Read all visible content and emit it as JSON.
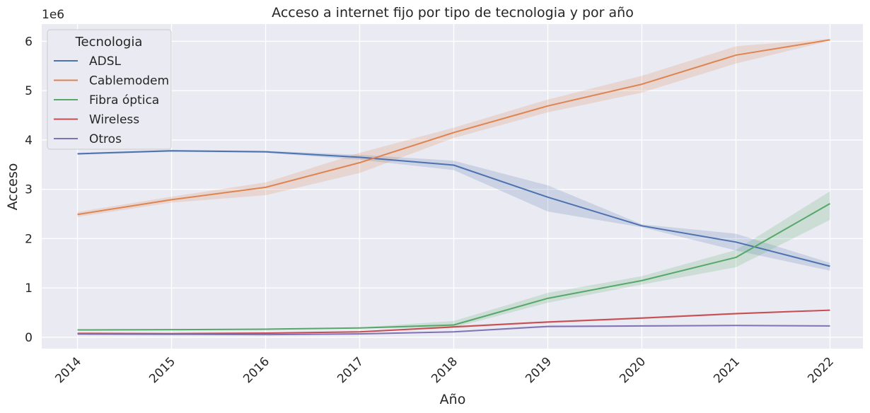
{
  "chart_data": {
    "type": "line",
    "title": "Acceso a internet fijo por tipo de tecnologia y por año",
    "xlabel": "Año",
    "ylabel": "Acceso",
    "y_offset_label": "1e6",
    "x": [
      2014,
      2015,
      2016,
      2017,
      2018,
      2019,
      2020,
      2021,
      2022
    ],
    "x_tick_labels": [
      "2014",
      "2015",
      "2016",
      "2017",
      "2018",
      "2019",
      "2020",
      "2021",
      "2022"
    ],
    "xlim": [
      2013.62,
      2022.35
    ],
    "y_ticks": [
      0,
      1,
      2,
      3,
      4,
      5,
      6
    ],
    "y_tick_labels": [
      "0",
      "1",
      "2",
      "3",
      "4",
      "5",
      "6"
    ],
    "ylim": [
      -0.23,
      6.35
    ],
    "y_scale_note": "values in millions (1e6)",
    "grid": true,
    "legend": {
      "title": "Tecnologia",
      "placement": "top-left"
    },
    "series": [
      {
        "name": "ADSL",
        "color": "#4c72b0",
        "values": [
          3.72,
          3.78,
          3.76,
          3.65,
          3.49,
          2.84,
          2.26,
          1.93,
          1.44
        ],
        "lower": [
          3.7,
          3.76,
          3.74,
          3.6,
          3.39,
          2.55,
          2.23,
          1.76,
          1.35
        ],
        "upper": [
          3.74,
          3.8,
          3.78,
          3.7,
          3.58,
          3.08,
          2.29,
          2.1,
          1.51
        ]
      },
      {
        "name": "Cablemodem",
        "color": "#dd8452",
        "values": [
          2.49,
          2.79,
          3.04,
          3.54,
          4.15,
          4.69,
          5.13,
          5.72,
          6.03
        ],
        "lower": [
          2.44,
          2.73,
          2.88,
          3.33,
          4.04,
          4.56,
          4.96,
          5.55,
          6.01
        ],
        "upper": [
          2.54,
          2.85,
          3.14,
          3.74,
          4.25,
          4.82,
          5.3,
          5.9,
          6.05
        ]
      },
      {
        "name": "Fibra óptica",
        "color": "#55a868",
        "values": [
          0.15,
          0.155,
          0.165,
          0.19,
          0.25,
          0.79,
          1.15,
          1.62,
          2.71
        ],
        "lower": [
          0.14,
          0.145,
          0.155,
          0.18,
          0.2,
          0.7,
          1.07,
          1.42,
          2.38
        ],
        "upper": [
          0.16,
          0.165,
          0.175,
          0.2,
          0.33,
          0.9,
          1.24,
          1.77,
          2.96
        ]
      },
      {
        "name": "Wireless",
        "color": "#c44e52",
        "values": [
          0.08,
          0.075,
          0.085,
          0.11,
          0.21,
          0.31,
          0.39,
          0.48,
          0.55
        ],
        "lower": [
          0.075,
          0.07,
          0.08,
          0.1,
          0.19,
          0.29,
          0.37,
          0.46,
          0.54
        ],
        "upper": [
          0.085,
          0.08,
          0.09,
          0.12,
          0.23,
          0.33,
          0.41,
          0.5,
          0.56
        ]
      },
      {
        "name": "Otros",
        "color": "#8172b3",
        "values": [
          0.065,
          0.06,
          0.055,
          0.07,
          0.11,
          0.22,
          0.23,
          0.24,
          0.23
        ],
        "lower": [
          0.06,
          0.055,
          0.05,
          0.065,
          0.1,
          0.2,
          0.215,
          0.23,
          0.22
        ],
        "upper": [
          0.07,
          0.065,
          0.06,
          0.075,
          0.12,
          0.24,
          0.245,
          0.25,
          0.24
        ]
      }
    ]
  }
}
